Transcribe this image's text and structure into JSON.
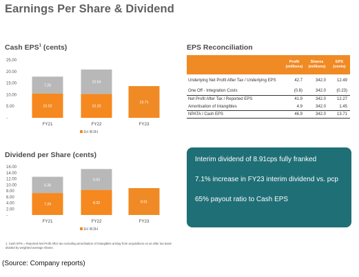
{
  "title": "Earnings Per Share & Dividend",
  "cash_eps": {
    "title": "Cash EPS",
    "title_sup": "1",
    "title_suffix": " (cents)"
  },
  "dps": {
    "title": "Dividend per Share (cents)"
  },
  "reconciliation": {
    "title": "EPS Reconciliation",
    "headers": {
      "profit": "Profit (millions)",
      "shares": "Shares (millions)",
      "eps": "EPS (cents)"
    },
    "rows": [
      {
        "label": "Underlying Net Profit After Tax / Underlying EPS",
        "profit": "42.7",
        "shares": "342.0",
        "eps": "12.49"
      },
      {
        "label": "One Off - Integration Costs",
        "profit": "(0.8)",
        "shares": "342.0",
        "eps": "(0.23)"
      },
      {
        "label": "Net Profit After Tax / Reported EPS",
        "profit": "41.9",
        "shares": "342.0",
        "eps": "12.27"
      },
      {
        "label": "Amortisation of Intangibles",
        "profit": "4.9",
        "shares": "342.0",
        "eps": "1.45"
      },
      {
        "label": "NPATA / Cash EPS",
        "profit": "46.9",
        "shares": "342.0",
        "eps": "13.71"
      }
    ]
  },
  "callout": {
    "line1": "Interim dividend of 8.91cps fully franked",
    "line2": "7.1% increase in FY23 interim dividend vs. pcp",
    "line3": "65% payout ratio to Cash EPS"
  },
  "footnote": "1. Cash EPS = Reported Net Profit After tax excluding amortisation of intangibles arising from acquisitions on an after tax basis divided by weighted average shares.",
  "source": "(Source: Company reports)",
  "colors": {
    "h1": "#f5881f",
    "h1_fy23": "#f08a24",
    "h2": "#b8b8b8",
    "callout_bg": "#1f6f76"
  },
  "chart_data": [
    {
      "type": "bar",
      "stacked": true,
      "categories": [
        "FY21",
        "FY22",
        "FY23"
      ],
      "series": [
        {
          "name": "1H",
          "values": [
            10.52,
            10.33,
            13.71
          ],
          "labels": [
            "10.52",
            "10.33",
            "13.71"
          ]
        },
        {
          "name": "2H",
          "values": [
            7.28,
            10.54,
            0
          ],
          "labels": [
            "7.28",
            "10.54",
            ""
          ]
        }
      ],
      "yticks": [
        "25.00",
        "20.00",
        "15.00",
        "10.00",
        "5.00",
        "-"
      ],
      "ylim": [
        0,
        25
      ],
      "legend": "bottom"
    },
    {
      "type": "bar",
      "stacked": true,
      "categories": [
        "FY21",
        "FY22",
        "FY23"
      ],
      "series": [
        {
          "name": "1H",
          "values": [
            7.29,
            8.32,
            8.91
          ],
          "labels": [
            "7.29",
            "8.32",
            "8.91"
          ]
        },
        {
          "name": "2H",
          "values": [
            5.38,
            6.93,
            0
          ],
          "labels": [
            "5.38",
            "6.93",
            ""
          ]
        }
      ],
      "yticks": [
        "16.00",
        "14.00",
        "12.00",
        "10.00",
        "8.00",
        "6.00",
        "4.00",
        "2.00",
        "-"
      ],
      "ylim": [
        0,
        16
      ],
      "legend": "bottom"
    }
  ]
}
